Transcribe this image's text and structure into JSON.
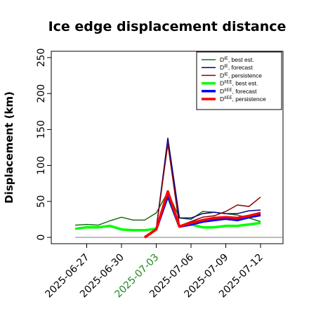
{
  "chart_data": {
    "type": "line",
    "title": "Ice edge displacement distance",
    "xlabel": "",
    "ylabel": "Displacement (km)",
    "ylim": [
      0,
      250
    ],
    "yticks": [
      0,
      50,
      100,
      150,
      200,
      250
    ],
    "xlim": [
      "2025-06-24",
      "2025-07-14"
    ],
    "xticks": [
      {
        "label": "2025-06-27",
        "color": "#000000"
      },
      {
        "label": "2025-06-30",
        "color": "#000000"
      },
      {
        "label": "2025-07-03",
        "color": "#228B22"
      },
      {
        "label": "2025-07-06",
        "color": "#000000"
      },
      {
        "label": "2025-07-09",
        "color": "#000000"
      },
      {
        "label": "2025-07-12",
        "color": "#000000"
      }
    ],
    "grid": false,
    "legend_position": "top-right",
    "legend": [
      {
        "base": "D",
        "sup": "IE",
        "suffix": ", best est."
      },
      {
        "base": "D",
        "sup": "IE",
        "suffix": ", forecast"
      },
      {
        "base": "D",
        "sup": "IE",
        "suffix": ", persistence"
      },
      {
        "base": "D",
        "sup": "IIEE",
        "suffix": ", best est."
      },
      {
        "base": "D",
        "sup": "IIEE",
        "suffix": ", forecast"
      },
      {
        "base": "D",
        "sup": "IIEE",
        "suffix": ", persistence"
      }
    ],
    "reference_line": {
      "y": 0,
      "x_start": "2025-06-26",
      "x_end": "2025-07-14",
      "color": "#808080"
    },
    "series": [
      {
        "color": "#1b6e1b",
        "width": 1.5,
        "x": [
          "2025-06-26",
          "2025-06-27",
          "2025-06-28",
          "2025-06-29",
          "2025-06-30",
          "2025-07-01",
          "2025-07-02",
          "2025-07-03",
          "2025-07-04",
          "2025-07-05",
          "2025-07-06",
          "2025-07-07",
          "2025-07-08",
          "2025-07-09",
          "2025-07-10",
          "2025-07-11",
          "2025-07-12"
        ],
        "y": [
          17,
          18,
          17,
          23,
          28,
          24,
          24,
          34,
          63,
          27,
          25,
          36,
          35,
          33,
          31,
          27,
          22
        ]
      },
      {
        "color": "#00008b",
        "width": 1.5,
        "x": [
          "2025-07-02",
          "2025-07-03",
          "2025-07-04",
          "2025-07-05",
          "2025-07-06",
          "2025-07-07",
          "2025-07-08",
          "2025-07-09",
          "2025-07-10",
          "2025-07-11",
          "2025-07-12"
        ],
        "y": [
          0,
          12,
          138,
          27,
          27,
          33,
          35,
          33,
          33,
          37,
          38
        ]
      },
      {
        "color": "#8b0000",
        "width": 1.5,
        "x": [
          "2025-07-02",
          "2025-07-03",
          "2025-07-04",
          "2025-07-05",
          "2025-07-06",
          "2025-07-07",
          "2025-07-08",
          "2025-07-09",
          "2025-07-10",
          "2025-07-11",
          "2025-07-12"
        ],
        "y": [
          0,
          12,
          130,
          16,
          22,
          28,
          30,
          36,
          45,
          43,
          56
        ]
      },
      {
        "color": "#00ff00",
        "width": 3.5,
        "x": [
          "2025-06-26",
          "2025-06-27",
          "2025-06-28",
          "2025-06-29",
          "2025-06-30",
          "2025-07-01",
          "2025-07-02",
          "2025-07-03",
          "2025-07-04",
          "2025-07-05",
          "2025-07-06",
          "2025-07-07",
          "2025-07-08",
          "2025-07-09",
          "2025-07-10",
          "2025-07-11",
          "2025-07-12"
        ],
        "y": [
          12,
          14,
          14,
          16,
          11,
          10,
          10,
          12,
          57,
          15,
          18,
          14,
          14,
          16,
          16,
          18,
          20
        ]
      },
      {
        "color": "#0000ff",
        "width": 3.5,
        "x": [
          "2025-07-02",
          "2025-07-03",
          "2025-07-04",
          "2025-07-05",
          "2025-07-06",
          "2025-07-07",
          "2025-07-08",
          "2025-07-09",
          "2025-07-10",
          "2025-07-11",
          "2025-07-12"
        ],
        "y": [
          0,
          11,
          58,
          15,
          18,
          22,
          24,
          26,
          24,
          28,
          31
        ]
      },
      {
        "color": "#ff0000",
        "width": 3.5,
        "x": [
          "2025-07-02",
          "2025-07-03",
          "2025-07-04",
          "2025-07-05",
          "2025-07-06",
          "2025-07-07",
          "2025-07-08",
          "2025-07-09",
          "2025-07-10",
          "2025-07-11",
          "2025-07-12"
        ],
        "y": [
          0,
          11,
          64,
          15,
          20,
          24,
          27,
          28,
          27,
          30,
          34
        ]
      }
    ]
  }
}
